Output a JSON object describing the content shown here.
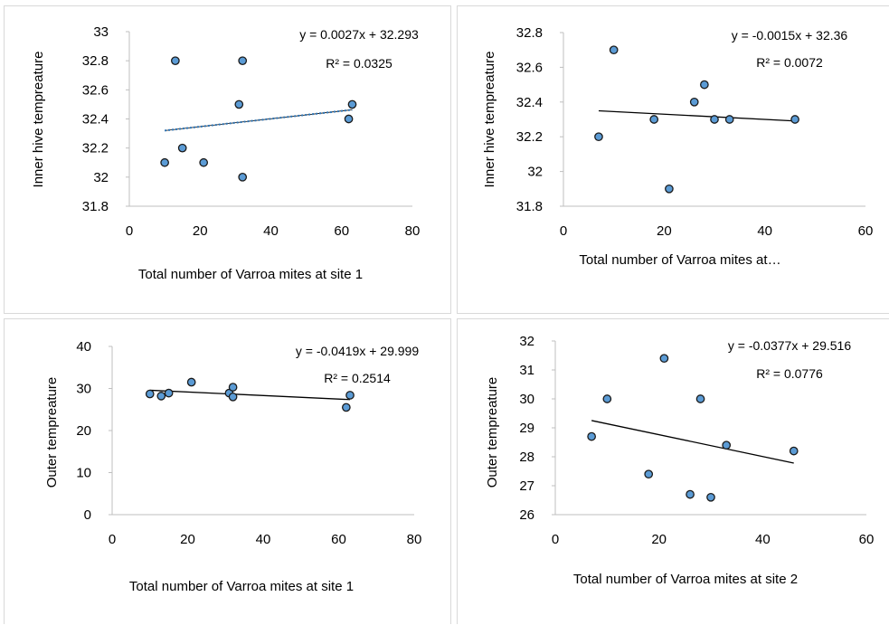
{
  "chart_data": [
    {
      "type": "scatter",
      "xlabel": "Total number of Varroa mites at site 1",
      "ylabel": "Inner hive tempreature",
      "xlim": [
        0,
        80
      ],
      "ylim": [
        31.8,
        33
      ],
      "x_ticks": [
        "0",
        "20",
        "40",
        "60",
        "80"
      ],
      "y_ticks": [
        "31.8",
        "32",
        "32.2",
        "32.4",
        "32.6",
        "32.8",
        "33"
      ],
      "points": [
        {
          "x": 10,
          "y": 32.1
        },
        {
          "x": 13,
          "y": 32.8
        },
        {
          "x": 15,
          "y": 32.2
        },
        {
          "x": 21,
          "y": 32.1
        },
        {
          "x": 31,
          "y": 32.5
        },
        {
          "x": 32,
          "y": 32.8
        },
        {
          "x": 32,
          "y": 32.0
        },
        {
          "x": 62,
          "y": 32.4
        },
        {
          "x": 63,
          "y": 32.5
        }
      ],
      "trendline": {
        "slope": 0.0027,
        "intercept": 32.293,
        "x_range": [
          10,
          63
        ],
        "style": "dotted"
      },
      "equation": "y = 0.0027x + 32.293",
      "r2": "R² = 0.0325",
      "grid": false
    },
    {
      "type": "scatter",
      "xlabel": "Total number of Varroa mites at…",
      "ylabel": "Inner hive tempreature",
      "xlim": [
        0,
        60
      ],
      "ylim": [
        31.8,
        32.8
      ],
      "x_ticks": [
        "0",
        "20",
        "40",
        "60"
      ],
      "y_ticks": [
        "31.8",
        "32",
        "32.2",
        "32.4",
        "32.6",
        "32.8"
      ],
      "points": [
        {
          "x": 7,
          "y": 32.2
        },
        {
          "x": 10,
          "y": 32.7
        },
        {
          "x": 18,
          "y": 32.3
        },
        {
          "x": 21,
          "y": 31.9
        },
        {
          "x": 26,
          "y": 32.4
        },
        {
          "x": 28,
          "y": 32.5
        },
        {
          "x": 30,
          "y": 32.3
        },
        {
          "x": 33,
          "y": 32.3
        },
        {
          "x": 46,
          "y": 32.3
        }
      ],
      "trendline": {
        "slope": -0.0015,
        "intercept": 32.36,
        "x_range": [
          7,
          46
        ],
        "style": "solid"
      },
      "equation": "y = -0.0015x + 32.36",
      "r2": "R² = 0.0072",
      "grid": false
    },
    {
      "type": "scatter",
      "xlabel": "Total number of  Varroa mites at site 1",
      "ylabel": "Outer tempreature",
      "xlim": [
        0,
        80
      ],
      "ylim": [
        0,
        40
      ],
      "x_ticks": [
        "0",
        "20",
        "40",
        "60",
        "80"
      ],
      "y_ticks": [
        "0",
        "10",
        "20",
        "30",
        "40"
      ],
      "points": [
        {
          "x": 10,
          "y": 28.7
        },
        {
          "x": 13,
          "y": 28.2
        },
        {
          "x": 15,
          "y": 28.9
        },
        {
          "x": 21,
          "y": 31.5
        },
        {
          "x": 31,
          "y": 28.9
        },
        {
          "x": 32,
          "y": 30.3
        },
        {
          "x": 32,
          "y": 28.0
        },
        {
          "x": 62,
          "y": 25.5
        },
        {
          "x": 63,
          "y": 28.4
        }
      ],
      "trendline": {
        "slope": -0.0419,
        "intercept": 29.999,
        "x_range": [
          10,
          63
        ],
        "style": "solid"
      },
      "equation": "y = -0.0419x + 29.999",
      "r2": "R² = 0.2514",
      "grid": false
    },
    {
      "type": "scatter",
      "xlabel": "Total number of Varroa mites at site 2",
      "ylabel": "Outer tempreature",
      "xlim": [
        0,
        60
      ],
      "ylim": [
        26,
        32
      ],
      "x_ticks": [
        "0",
        "20",
        "40",
        "60"
      ],
      "y_ticks": [
        "26",
        "27",
        "28",
        "29",
        "30",
        "31",
        "32"
      ],
      "points": [
        {
          "x": 7,
          "y": 28.7
        },
        {
          "x": 10,
          "y": 30.0
        },
        {
          "x": 18,
          "y": 27.4
        },
        {
          "x": 21,
          "y": 31.4
        },
        {
          "x": 26,
          "y": 26.7
        },
        {
          "x": 28,
          "y": 30.0
        },
        {
          "x": 30,
          "y": 26.6
        },
        {
          "x": 33,
          "y": 28.4
        },
        {
          "x": 46,
          "y": 28.2
        }
      ],
      "trendline": {
        "slope": -0.0377,
        "intercept": 29.516,
        "x_range": [
          7,
          46
        ],
        "style": "solid"
      },
      "equation": "y = -0.0377x + 29.516",
      "r2": "R² = 0.0776",
      "grid": false
    }
  ],
  "colors": {
    "marker_fill": "#5b9bd5",
    "marker_stroke": "#1a1a1a",
    "trend_solid": "#000000",
    "trend_dotted": "#2e75b6",
    "axis": "#bfbfbf",
    "panel_border": "#d9d9d9"
  }
}
